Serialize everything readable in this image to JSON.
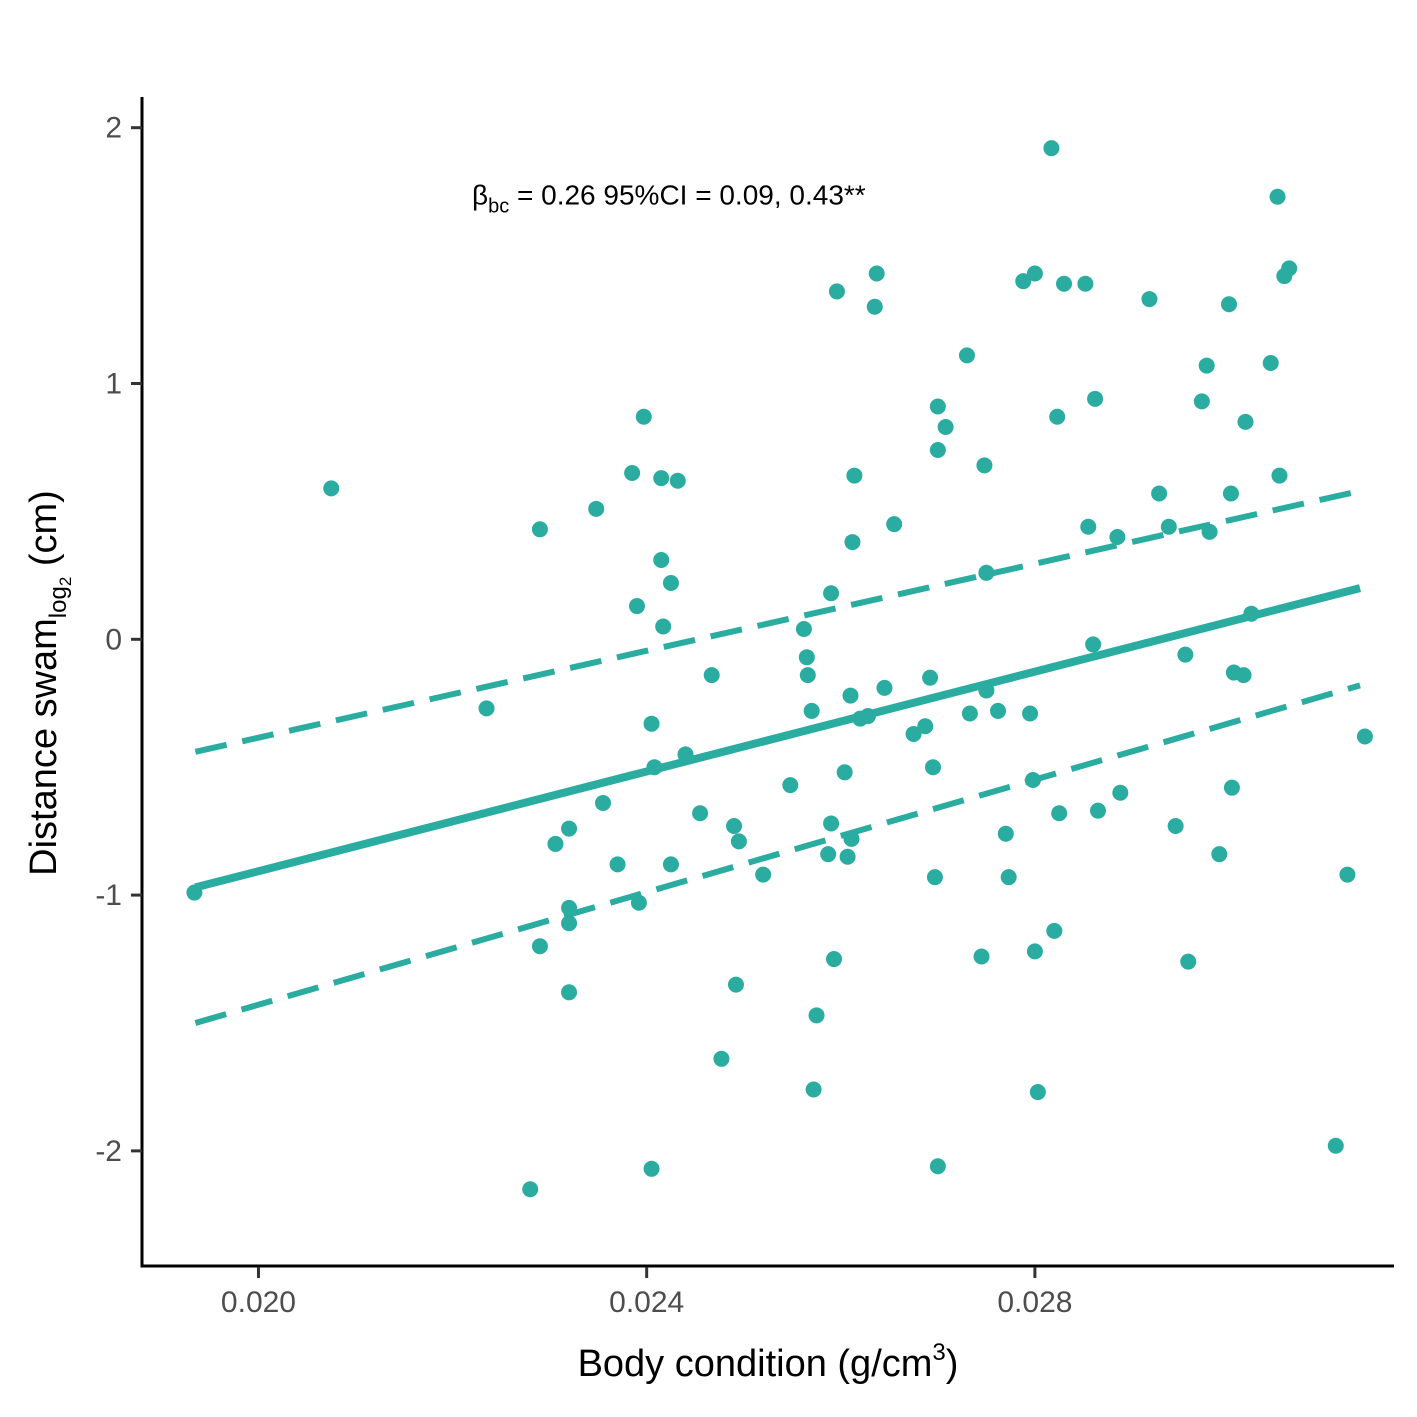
{
  "chart_data": {
    "type": "scatter",
    "title": "",
    "xlabel": {
      "main": "Body condition (g/cm",
      "sup": "3",
      "end": ")"
    },
    "ylabel": {
      "main": "Distance swam",
      "sub": "log",
      "sub2": "2",
      "end": " (cm)"
    },
    "xlim": [
      0.0188,
      0.0317
    ],
    "ylim": [
      -2.45,
      2.12
    ],
    "x_ticks": [
      {
        "value": 0.02,
        "label": "0.020"
      },
      {
        "value": 0.024,
        "label": "0.024"
      },
      {
        "value": 0.028,
        "label": "0.028"
      }
    ],
    "y_ticks": [
      {
        "value": 2,
        "label": "2"
      },
      {
        "value": 1,
        "label": "1"
      },
      {
        "value": 0,
        "label": "0"
      },
      {
        "value": -1,
        "label": "-1"
      },
      {
        "value": -2,
        "label": "-2"
      }
    ],
    "annotation": {
      "beta": "β",
      "beta_sub": "bc",
      "text": " =  0.26  95%CI = 0.09, 0.43**",
      "x": 0.0222,
      "y": 1.7
    },
    "color": "#2aaca0",
    "fit_line": {
      "x": [
        0.01935,
        0.03135
      ],
      "y": [
        -0.97,
        0.2
      ]
    },
    "ci_upper": {
      "x": [
        0.01935,
        0.03135
      ],
      "y": [
        -0.44,
        0.58
      ]
    },
    "ci_lower": {
      "x": [
        0.01935,
        0.03135
      ],
      "y": [
        -1.5,
        -0.18
      ]
    },
    "points": [
      [
        0.01934,
        -0.99
      ],
      [
        0.02075,
        0.59
      ],
      [
        0.02235,
        -0.27
      ],
      [
        0.0228,
        -2.15
      ],
      [
        0.0229,
        0.43
      ],
      [
        0.0229,
        -1.2
      ],
      [
        0.02306,
        -0.8
      ],
      [
        0.0232,
        -0.74
      ],
      [
        0.0232,
        -1.05
      ],
      [
        0.0232,
        -1.11
      ],
      [
        0.0232,
        -1.38
      ],
      [
        0.02348,
        0.51
      ],
      [
        0.02355,
        -0.64
      ],
      [
        0.0237,
        -0.88
      ],
      [
        0.02385,
        0.65
      ],
      [
        0.0239,
        0.13
      ],
      [
        0.02392,
        -1.03
      ],
      [
        0.02397,
        0.87
      ],
      [
        0.02405,
        -0.33
      ],
      [
        0.02405,
        -2.07
      ],
      [
        0.02408,
        -0.5
      ],
      [
        0.02415,
        0.63
      ],
      [
        0.02415,
        0.31
      ],
      [
        0.02417,
        0.05
      ],
      [
        0.02425,
        0.22
      ],
      [
        0.02425,
        -0.88
      ],
      [
        0.02432,
        0.62
      ],
      [
        0.0244,
        -0.45
      ],
      [
        0.02455,
        -0.68
      ],
      [
        0.02467,
        -0.14
      ],
      [
        0.02477,
        -1.64
      ],
      [
        0.0249,
        -0.73
      ],
      [
        0.02492,
        -1.35
      ],
      [
        0.02495,
        -0.79
      ],
      [
        0.0252,
        -0.92
      ],
      [
        0.02548,
        -0.57
      ],
      [
        0.02562,
        0.04
      ],
      [
        0.02565,
        -0.07
      ],
      [
        0.02566,
        -0.14
      ],
      [
        0.0257,
        -0.28
      ],
      [
        0.02572,
        -1.76
      ],
      [
        0.02575,
        -1.47
      ],
      [
        0.02587,
        -0.84
      ],
      [
        0.0259,
        0.18
      ],
      [
        0.0259,
        -0.72
      ],
      [
        0.02593,
        -1.25
      ],
      [
        0.02596,
        1.36
      ],
      [
        0.02604,
        -0.52
      ],
      [
        0.02607,
        -0.85
      ],
      [
        0.0261,
        -0.22
      ],
      [
        0.02611,
        -0.78
      ],
      [
        0.02612,
        0.38
      ],
      [
        0.02614,
        0.64
      ],
      [
        0.0262,
        -0.31
      ],
      [
        0.02628,
        -0.3
      ],
      [
        0.02635,
        1.3
      ],
      [
        0.02637,
        1.43
      ],
      [
        0.02645,
        -0.19
      ],
      [
        0.02655,
        0.45
      ],
      [
        0.02675,
        -0.37
      ],
      [
        0.02687,
        -0.34
      ],
      [
        0.02692,
        -0.15
      ],
      [
        0.02695,
        -0.5
      ],
      [
        0.02697,
        -0.93
      ],
      [
        0.027,
        0.91
      ],
      [
        0.027,
        0.74
      ],
      [
        0.027,
        -2.06
      ],
      [
        0.02708,
        0.83
      ],
      [
        0.0273,
        1.11
      ],
      [
        0.02733,
        -0.29
      ],
      [
        0.02745,
        -1.24
      ],
      [
        0.02748,
        0.68
      ],
      [
        0.0275,
        -0.2
      ],
      [
        0.0275,
        0.26
      ],
      [
        0.02762,
        -0.28
      ],
      [
        0.0277,
        -0.76
      ],
      [
        0.02773,
        -0.93
      ],
      [
        0.02788,
        1.4
      ],
      [
        0.02795,
        -0.29
      ],
      [
        0.02798,
        -0.55
      ],
      [
        0.028,
        -1.22
      ],
      [
        0.028,
        1.43
      ],
      [
        0.02803,
        -1.77
      ],
      [
        0.02817,
        1.92
      ],
      [
        0.0282,
        -1.14
      ],
      [
        0.02823,
        0.87
      ],
      [
        0.02825,
        -0.68
      ],
      [
        0.0283,
        1.39
      ],
      [
        0.02852,
        1.39
      ],
      [
        0.02855,
        0.44
      ],
      [
        0.0286,
        -0.02
      ],
      [
        0.02862,
        0.94
      ],
      [
        0.02865,
        -0.67
      ],
      [
        0.02885,
        0.4
      ],
      [
        0.02888,
        -0.6
      ],
      [
        0.02918,
        1.33
      ],
      [
        0.02928,
        0.57
      ],
      [
        0.02938,
        0.44
      ],
      [
        0.02945,
        -0.73
      ],
      [
        0.02955,
        -0.06
      ],
      [
        0.02958,
        -1.26
      ],
      [
        0.02972,
        0.93
      ],
      [
        0.02977,
        1.07
      ],
      [
        0.0298,
        0.42
      ],
      [
        0.0299,
        -0.84
      ],
      [
        0.03,
        1.31
      ],
      [
        0.03002,
        0.57
      ],
      [
        0.03003,
        -0.58
      ],
      [
        0.03005,
        -0.13
      ],
      [
        0.03015,
        -0.14
      ],
      [
        0.03017,
        0.85
      ],
      [
        0.03023,
        0.1
      ],
      [
        0.03043,
        1.08
      ],
      [
        0.0305,
        1.73
      ],
      [
        0.03052,
        0.64
      ],
      [
        0.03057,
        1.42
      ],
      [
        0.03062,
        1.45
      ],
      [
        0.0311,
        -1.98
      ],
      [
        0.03122,
        -0.92
      ],
      [
        0.0314,
        -0.38
      ]
    ]
  }
}
